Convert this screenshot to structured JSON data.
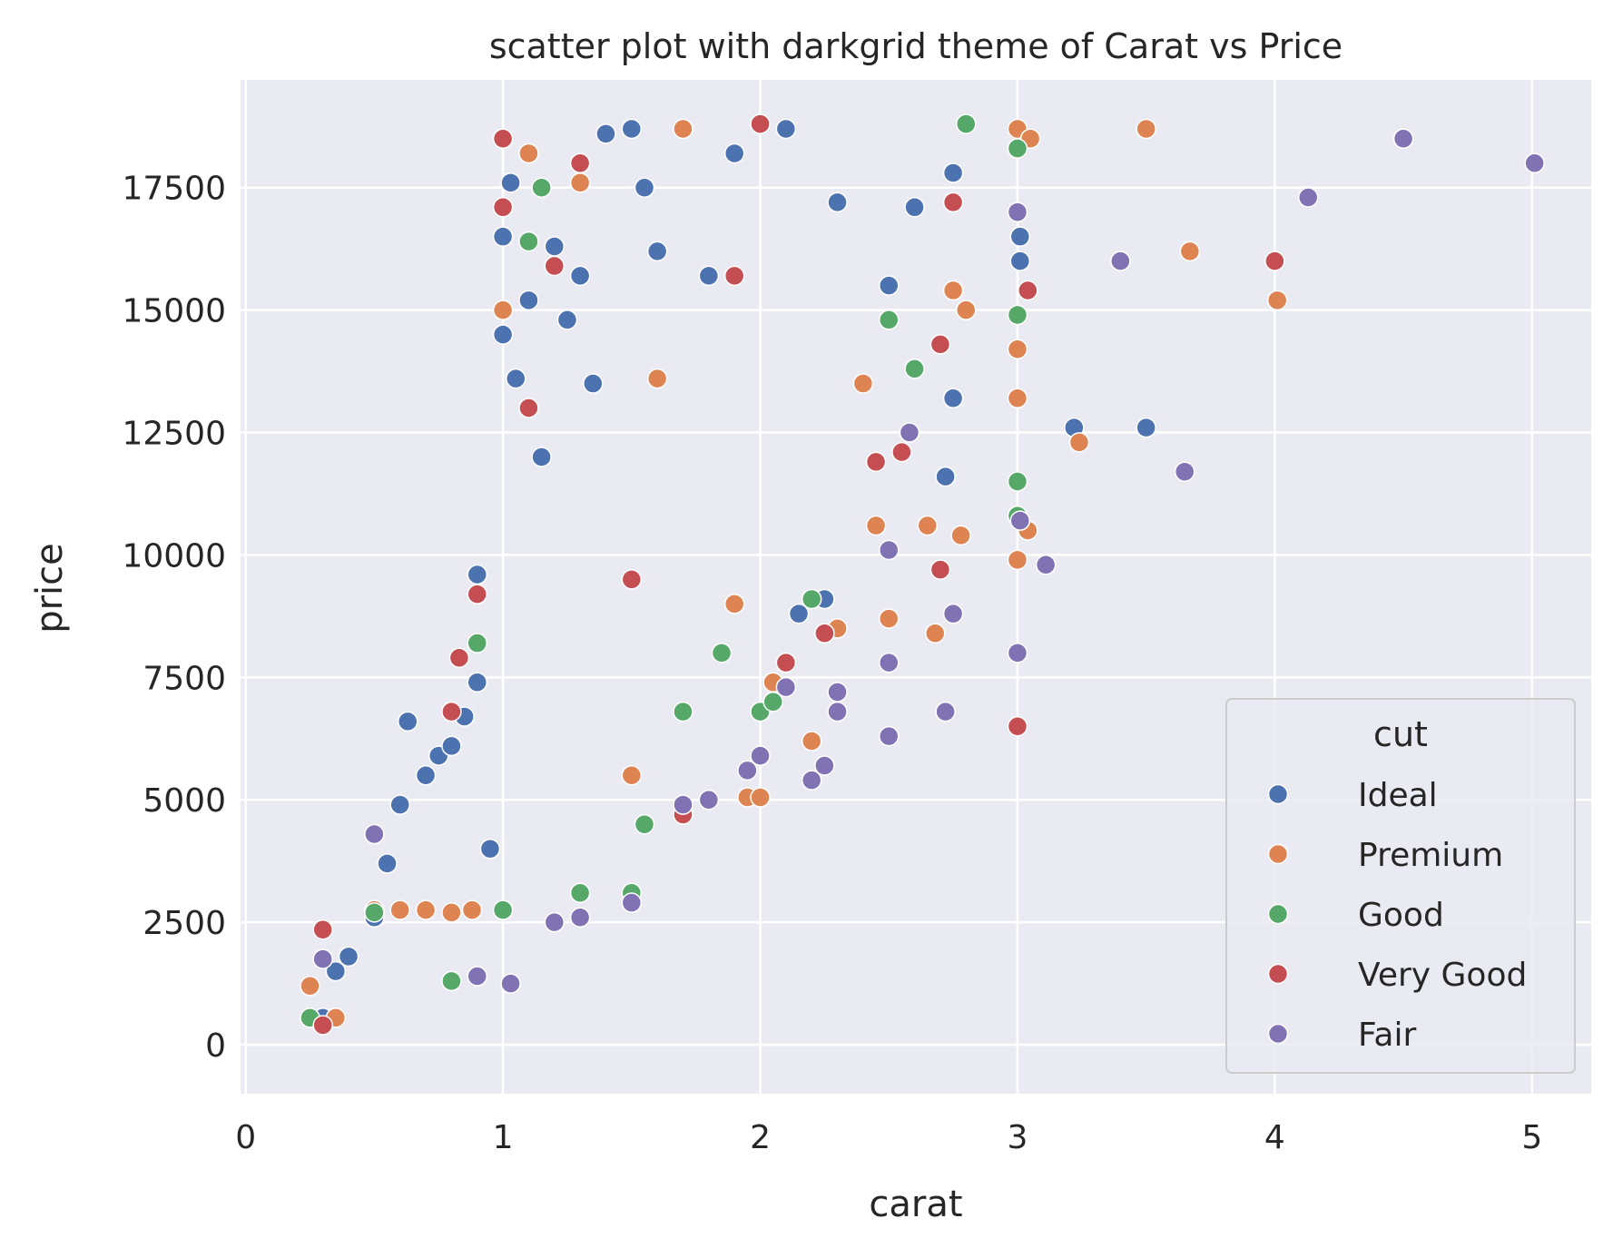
{
  "chart_data": {
    "type": "scatter",
    "title": "scatter plot with darkgrid theme of Carat vs Price",
    "xlabel": "carat",
    "ylabel": "price",
    "xlim": [
      -0.02,
      5.23
    ],
    "ylim": [
      -1000,
      19700
    ],
    "xticks": [
      0,
      1,
      2,
      3,
      4,
      5
    ],
    "yticks": [
      0,
      2500,
      5000,
      7500,
      10000,
      12500,
      15000,
      17500
    ],
    "theme": "darkgrid",
    "grid": true,
    "legend": {
      "title": "cut",
      "position": "lower-right",
      "entries": [
        "Ideal",
        "Premium",
        "Good",
        "Very Good",
        "Fair"
      ]
    },
    "series": [
      {
        "name": "Ideal",
        "color": "#4c72b0",
        "points": [
          [
            0.3,
            550
          ],
          [
            0.35,
            1500
          ],
          [
            0.4,
            1800
          ],
          [
            0.5,
            2600
          ],
          [
            0.55,
            3700
          ],
          [
            0.6,
            4900
          ],
          [
            0.63,
            6600
          ],
          [
            0.7,
            5500
          ],
          [
            0.75,
            5900
          ],
          [
            0.8,
            6100
          ],
          [
            0.85,
            6700
          ],
          [
            0.9,
            7400
          ],
          [
            0.9,
            9600
          ],
          [
            0.95,
            4000
          ],
          [
            1.0,
            14500
          ],
          [
            1.0,
            16500
          ],
          [
            1.03,
            17600
          ],
          [
            1.05,
            13600
          ],
          [
            1.1,
            15200
          ],
          [
            1.15,
            12000
          ],
          [
            1.2,
            16300
          ],
          [
            1.25,
            14800
          ],
          [
            1.3,
            15700
          ],
          [
            1.35,
            13500
          ],
          [
            1.4,
            18600
          ],
          [
            1.5,
            18700
          ],
          [
            1.55,
            17500
          ],
          [
            1.6,
            16200
          ],
          [
            1.7,
            18700
          ],
          [
            1.8,
            15700
          ],
          [
            1.9,
            18200
          ],
          [
            2.0,
            18800
          ],
          [
            2.1,
            18700
          ],
          [
            2.15,
            8800
          ],
          [
            2.25,
            9100
          ],
          [
            2.3,
            17200
          ],
          [
            2.5,
            15500
          ],
          [
            2.6,
            17100
          ],
          [
            2.72,
            11600
          ],
          [
            2.75,
            13200
          ],
          [
            2.75,
            17800
          ],
          [
            3.01,
            16000
          ],
          [
            3.01,
            16500
          ],
          [
            3.22,
            12600
          ],
          [
            3.5,
            12600
          ]
        ]
      },
      {
        "name": "Premium",
        "color": "#dd8452",
        "points": [
          [
            0.25,
            1200
          ],
          [
            0.35,
            550
          ],
          [
            0.5,
            2750
          ],
          [
            0.6,
            2750
          ],
          [
            0.7,
            2750
          ],
          [
            0.8,
            2700
          ],
          [
            0.88,
            2750
          ],
          [
            1.0,
            15000
          ],
          [
            1.1,
            18200
          ],
          [
            1.3,
            17600
          ],
          [
            1.5,
            5500
          ],
          [
            1.6,
            13600
          ],
          [
            1.7,
            18700
          ],
          [
            1.9,
            9000
          ],
          [
            1.95,
            5050
          ],
          [
            2.0,
            5050
          ],
          [
            2.05,
            7400
          ],
          [
            2.2,
            6200
          ],
          [
            2.3,
            8500
          ],
          [
            2.4,
            13500
          ],
          [
            2.45,
            10600
          ],
          [
            2.5,
            8700
          ],
          [
            2.65,
            10600
          ],
          [
            2.68,
            8400
          ],
          [
            2.75,
            15400
          ],
          [
            2.78,
            10400
          ],
          [
            2.8,
            15000
          ],
          [
            3.0,
            18700
          ],
          [
            3.0,
            14200
          ],
          [
            3.0,
            13200
          ],
          [
            3.0,
            9900
          ],
          [
            3.04,
            10500
          ],
          [
            3.05,
            18500
          ],
          [
            3.24,
            12300
          ],
          [
            3.5,
            18700
          ],
          [
            3.67,
            16200
          ],
          [
            4.01,
            15200
          ]
        ]
      },
      {
        "name": "Good",
        "color": "#55a868",
        "points": [
          [
            0.25,
            550
          ],
          [
            0.5,
            2700
          ],
          [
            0.8,
            1300
          ],
          [
            0.9,
            8200
          ],
          [
            1.0,
            2750
          ],
          [
            1.1,
            16400
          ],
          [
            1.15,
            17500
          ],
          [
            1.3,
            3100
          ],
          [
            1.5,
            3100
          ],
          [
            1.55,
            4500
          ],
          [
            1.7,
            6800
          ],
          [
            1.85,
            8000
          ],
          [
            2.0,
            6800
          ],
          [
            2.05,
            7000
          ],
          [
            2.2,
            9100
          ],
          [
            2.5,
            14800
          ],
          [
            2.6,
            13800
          ],
          [
            2.8,
            18800
          ],
          [
            3.0,
            18300
          ],
          [
            3.0,
            14900
          ],
          [
            3.0,
            11500
          ],
          [
            3.0,
            10800
          ]
        ]
      },
      {
        "name": "Very Good",
        "color": "#c44e52",
        "points": [
          [
            0.3,
            2350
          ],
          [
            0.3,
            400
          ],
          [
            0.8,
            6800
          ],
          [
            0.83,
            7900
          ],
          [
            0.9,
            9200
          ],
          [
            1.0,
            18500
          ],
          [
            1.0,
            17100
          ],
          [
            1.1,
            13000
          ],
          [
            1.2,
            15900
          ],
          [
            1.3,
            18000
          ],
          [
            1.5,
            9500
          ],
          [
            1.7,
            4700
          ],
          [
            1.9,
            15700
          ],
          [
            2.0,
            18800
          ],
          [
            2.1,
            7800
          ],
          [
            2.25,
            8400
          ],
          [
            2.45,
            11900
          ],
          [
            2.55,
            12100
          ],
          [
            2.7,
            9700
          ],
          [
            2.7,
            14300
          ],
          [
            2.75,
            17200
          ],
          [
            3.0,
            6500
          ],
          [
            3.04,
            15400
          ],
          [
            4.0,
            16000
          ]
        ]
      },
      {
        "name": "Fair",
        "color": "#8172b3",
        "points": [
          [
            0.3,
            1750
          ],
          [
            0.5,
            4300
          ],
          [
            0.9,
            1400
          ],
          [
            1.03,
            1250
          ],
          [
            1.2,
            2500
          ],
          [
            1.3,
            2600
          ],
          [
            1.5,
            2900
          ],
          [
            1.7,
            4900
          ],
          [
            1.8,
            5000
          ],
          [
            1.95,
            5600
          ],
          [
            2.0,
            5900
          ],
          [
            2.1,
            7300
          ],
          [
            2.2,
            5400
          ],
          [
            2.25,
            5700
          ],
          [
            2.3,
            7200
          ],
          [
            2.3,
            6800
          ],
          [
            2.5,
            6300
          ],
          [
            2.5,
            7800
          ],
          [
            2.5,
            10100
          ],
          [
            2.58,
            12500
          ],
          [
            2.72,
            6800
          ],
          [
            2.75,
            8800
          ],
          [
            3.0,
            8000
          ],
          [
            3.0,
            17000
          ],
          [
            3.01,
            10700
          ],
          [
            3.11,
            9800
          ],
          [
            3.4,
            16000
          ],
          [
            3.65,
            11700
          ],
          [
            4.13,
            17300
          ],
          [
            4.5,
            18500
          ],
          [
            5.01,
            18000
          ]
        ]
      }
    ]
  }
}
